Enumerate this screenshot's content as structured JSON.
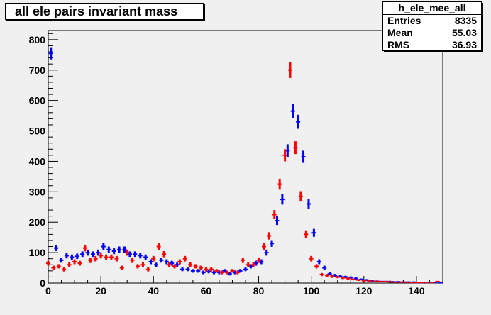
{
  "chart_data": {
    "type": "scatter",
    "title": "all ele pairs invariant mass",
    "xlim": [
      0,
      150
    ],
    "ylim": [
      0,
      830
    ],
    "xticks": [
      0,
      20,
      40,
      60,
      80,
      100,
      120,
      140
    ],
    "yticks": [
      0,
      100,
      200,
      300,
      400,
      500,
      600,
      700,
      800
    ],
    "grid": false,
    "plot_background": "#f0f0f0",
    "stats": {
      "name": "h_ele_mee_all",
      "rows": [
        {
          "label": "Entries",
          "value": "8335"
        },
        {
          "label": "Mean",
          "value": "55.03"
        },
        {
          "label": "RMS",
          "value": "36.93"
        }
      ]
    },
    "series": [
      {
        "color": "#0000ff",
        "x": [
          1,
          3,
          5,
          7,
          9,
          11,
          13,
          15,
          17,
          19,
          21,
          23,
          25,
          27,
          29,
          31,
          33,
          35,
          37,
          39,
          41,
          43,
          45,
          47,
          49,
          51,
          53,
          55,
          57,
          59,
          61,
          63,
          65,
          67,
          69,
          71,
          73,
          75,
          77,
          79,
          81,
          83,
          85,
          87,
          89,
          91,
          93,
          95,
          97,
          99,
          101,
          103,
          105,
          107,
          109,
          111,
          113,
          115,
          117,
          119,
          121,
          123,
          125,
          127,
          129,
          131,
          133,
          135,
          137,
          139,
          141,
          143,
          145,
          147,
          149
        ],
        "y": [
          755,
          115,
          75,
          90,
          85,
          88,
          95,
          100,
          95,
          100,
          120,
          110,
          105,
          110,
          110,
          95,
          95,
          90,
          85,
          70,
          60,
          75,
          70,
          65,
          60,
          45,
          45,
          40,
          40,
          35,
          38,
          35,
          35,
          40,
          30,
          35,
          40,
          45,
          55,
          65,
          70,
          100,
          130,
          205,
          275,
          435,
          565,
          530,
          415,
          260,
          165,
          70,
          50,
          30,
          25,
          22,
          20,
          18,
          15,
          12,
          10,
          8,
          6,
          5,
          5,
          4,
          4,
          3,
          3,
          3,
          2,
          2,
          2,
          2,
          1
        ],
        "err": [
          20,
          10,
          8,
          9,
          9,
          9,
          9,
          10,
          9,
          10,
          11,
          10,
          10,
          10,
          10,
          9,
          9,
          9,
          9,
          8,
          7,
          8,
          8,
          8,
          7,
          6,
          6,
          6,
          6,
          6,
          6,
          6,
          6,
          6,
          5,
          6,
          6,
          6,
          7,
          8,
          8,
          10,
          11,
          14,
          17,
          21,
          24,
          23,
          20,
          16,
          13,
          8,
          7,
          5,
          5,
          4,
          4,
          4,
          4,
          3,
          3,
          3,
          2,
          2,
          2,
          2,
          2,
          2,
          2,
          2,
          1,
          1,
          1,
          1,
          1
        ]
      },
      {
        "color": "#ff0000",
        "x": [
          0,
          2,
          4,
          6,
          8,
          10,
          12,
          14,
          16,
          18,
          20,
          22,
          24,
          26,
          28,
          30,
          32,
          34,
          36,
          38,
          40,
          42,
          44,
          46,
          48,
          50,
          52,
          54,
          56,
          58,
          60,
          62,
          64,
          66,
          68,
          70,
          72,
          74,
          76,
          78,
          80,
          82,
          84,
          86,
          88,
          90,
          92,
          94,
          96,
          98,
          100,
          102,
          104,
          106,
          108,
          110,
          112,
          114,
          116,
          118,
          120,
          122,
          124,
          126,
          128,
          130,
          132,
          134,
          136,
          138,
          140,
          142,
          144,
          146,
          148
        ],
        "y": [
          65,
          50,
          55,
          45,
          60,
          70,
          65,
          115,
          75,
          80,
          90,
          85,
          85,
          80,
          50,
          100,
          75,
          55,
          60,
          45,
          80,
          120,
          95,
          60,
          55,
          70,
          80,
          60,
          55,
          50,
          45,
          45,
          40,
          35,
          35,
          40,
          35,
          75,
          60,
          60,
          75,
          120,
          155,
          225,
          325,
          420,
          700,
          445,
          285,
          160,
          80,
          55,
          28,
          25,
          22,
          20,
          17,
          15,
          12,
          10,
          8,
          7,
          6,
          5,
          5,
          4,
          3,
          3,
          3,
          2,
          2,
          2,
          2,
          2,
          5
        ],
        "err": [
          8,
          7,
          7,
          7,
          8,
          8,
          8,
          11,
          9,
          9,
          9,
          9,
          9,
          9,
          7,
          10,
          9,
          7,
          8,
          7,
          9,
          11,
          10,
          8,
          7,
          8,
          9,
          8,
          7,
          7,
          7,
          7,
          6,
          6,
          6,
          6,
          6,
          9,
          8,
          8,
          9,
          11,
          12,
          15,
          18,
          20,
          26,
          21,
          17,
          13,
          9,
          7,
          5,
          5,
          5,
          4,
          4,
          4,
          3,
          3,
          3,
          3,
          2,
          2,
          2,
          2,
          2,
          2,
          2,
          1,
          1,
          1,
          1,
          1,
          2
        ]
      }
    ]
  }
}
